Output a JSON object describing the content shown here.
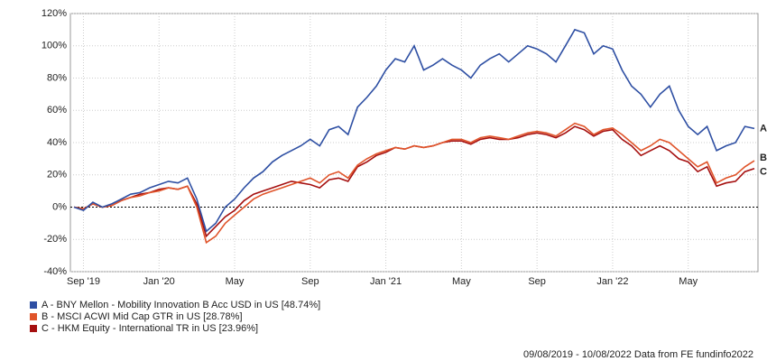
{
  "chart_data": {
    "type": "line",
    "categories": [
      null,
      "Sep '19",
      null,
      null,
      null,
      null,
      null,
      null,
      null,
      "Jan '20",
      null,
      null,
      null,
      null,
      null,
      null,
      null,
      "May",
      null,
      null,
      null,
      null,
      null,
      null,
      null,
      "Sep",
      null,
      null,
      null,
      null,
      null,
      null,
      null,
      "Jan '21",
      null,
      null,
      null,
      null,
      null,
      null,
      null,
      "May",
      null,
      null,
      null,
      null,
      null,
      null,
      null,
      "Sep",
      null,
      null,
      null,
      null,
      null,
      null,
      null,
      "Jan '22",
      null,
      null,
      null,
      null,
      null,
      null,
      null,
      "May",
      null,
      null,
      null,
      null,
      null,
      null,
      null
    ],
    "series": [
      {
        "name": "A - BNY Mellon - Mobility Innovation B Acc USD in US [48.74%]",
        "end_label": "A",
        "color": "#2e4fa3",
        "values": [
          0,
          -2,
          3,
          0,
          2,
          5,
          8,
          9,
          12,
          14,
          16,
          15,
          18,
          5,
          -15,
          -10,
          0,
          5,
          12,
          18,
          22,
          28,
          32,
          35,
          38,
          42,
          38,
          48,
          50,
          45,
          62,
          68,
          75,
          85,
          92,
          90,
          100,
          85,
          88,
          92,
          88,
          85,
          80,
          88,
          92,
          95,
          90,
          95,
          100,
          98,
          95,
          90,
          100,
          110,
          108,
          95,
          100,
          98,
          85,
          75,
          70,
          62,
          70,
          75,
          60,
          50,
          45,
          50,
          35,
          38,
          40,
          50,
          48.74
        ]
      },
      {
        "name": "B - MSCI ACWI Mid Cap GTR in US [28.78%]",
        "end_label": "B",
        "color": "#e0542a",
        "values": [
          0,
          -1,
          2,
          0,
          1,
          4,
          6,
          7,
          9,
          10,
          12,
          11,
          13,
          0,
          -22,
          -18,
          -10,
          -5,
          0,
          5,
          8,
          10,
          12,
          14,
          16,
          18,
          15,
          20,
          22,
          18,
          26,
          30,
          33,
          35,
          37,
          36,
          38,
          37,
          38,
          40,
          42,
          42,
          40,
          43,
          44,
          43,
          42,
          44,
          46,
          47,
          46,
          44,
          48,
          52,
          50,
          45,
          48,
          49,
          45,
          40,
          35,
          38,
          42,
          40,
          35,
          30,
          25,
          28,
          15,
          18,
          20,
          25,
          28.78
        ]
      },
      {
        "name": "C - HKM Equity - International TR in US [23.96%]",
        "end_label": "C",
        "color": "#a50f0f",
        "values": [
          0,
          -1,
          2,
          0,
          1,
          4,
          6,
          8,
          9,
          11,
          12,
          11,
          13,
          2,
          -18,
          -12,
          -6,
          -2,
          4,
          8,
          10,
          12,
          14,
          16,
          15,
          14,
          12,
          17,
          18,
          16,
          25,
          28,
          32,
          34,
          37,
          36,
          38,
          37,
          38,
          40,
          41,
          41,
          39,
          42,
          43,
          42,
          42,
          43,
          45,
          46,
          45,
          43,
          46,
          50,
          48,
          44,
          47,
          48,
          42,
          38,
          32,
          35,
          38,
          35,
          30,
          28,
          22,
          25,
          13,
          15,
          16,
          22,
          23.96
        ]
      }
    ],
    "ylim": [
      -40,
      120
    ],
    "yticks": [
      {
        "value": -40,
        "label": "-40%"
      },
      {
        "value": -20,
        "label": "-20%"
      },
      {
        "value": 0,
        "label": "0%"
      },
      {
        "value": 20,
        "label": "20%"
      },
      {
        "value": 40,
        "label": "40%"
      },
      {
        "value": 60,
        "label": "60%"
      },
      {
        "value": 80,
        "label": "80%"
      },
      {
        "value": 100,
        "label": "100%"
      },
      {
        "value": 120,
        "label": "120%"
      }
    ],
    "grid": true,
    "footer": "09/08/2019 - 10/08/2022 Data from FE fundinfo2022"
  }
}
